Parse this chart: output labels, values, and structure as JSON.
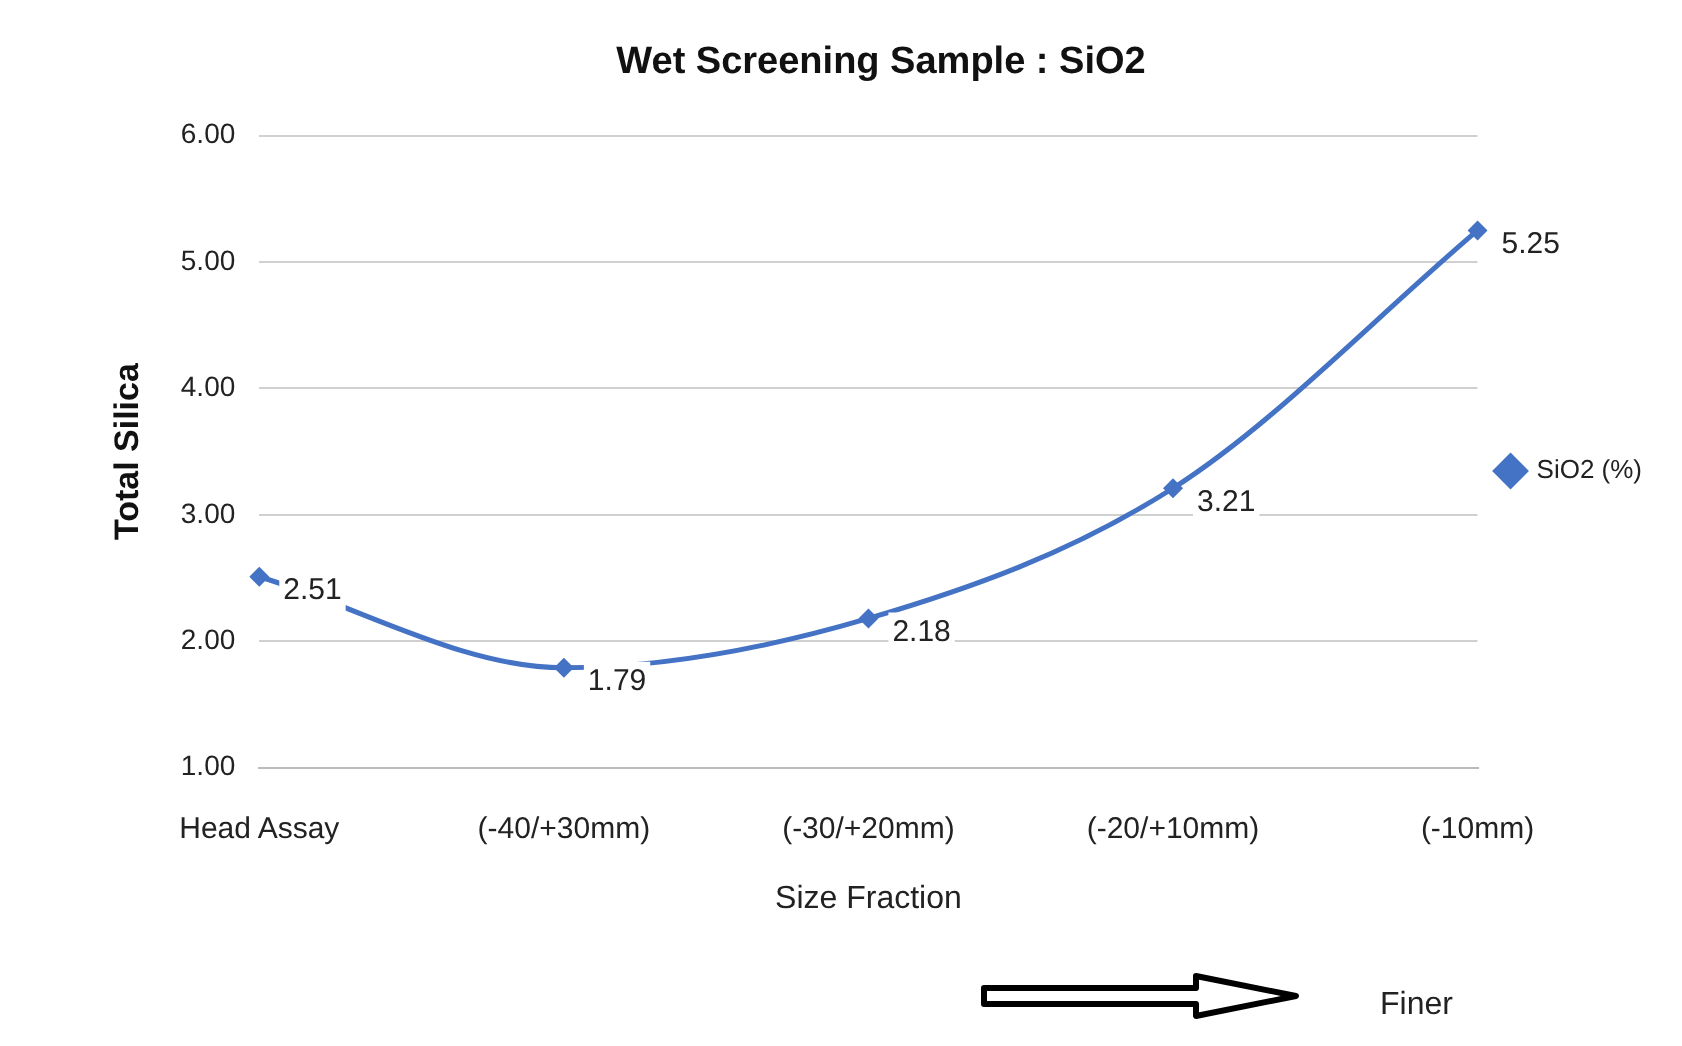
{
  "chart_data": {
    "type": "line",
    "title": "Wet Screening Sample : SiO2",
    "xlabel": "Size Fraction",
    "ylabel": "Total Silica",
    "categories": [
      "Head Assay",
      "(-40/+30mm)",
      "(-30/+20mm)",
      "(-20/+10mm)",
      "(-10mm)"
    ],
    "series": [
      {
        "name": "SiO2 (%)",
        "color": "#4472c4",
        "values": [
          2.51,
          1.79,
          2.18,
          3.21,
          5.25
        ]
      }
    ],
    "ylim": [
      1,
      6
    ],
    "yticks": [
      {
        "value": 1,
        "label": "1.00"
      },
      {
        "value": 2,
        "label": "2.00"
      },
      {
        "value": 3,
        "label": "3.00"
      },
      {
        "value": 4,
        "label": "4.00"
      },
      {
        "value": 5,
        "label": "5.00"
      },
      {
        "value": 6,
        "label": "6.00"
      }
    ],
    "grid": "y",
    "legend": "right",
    "marker": "diamond",
    "line_style": "solid",
    "data_labels": true,
    "annotations": [
      "Finer"
    ]
  }
}
